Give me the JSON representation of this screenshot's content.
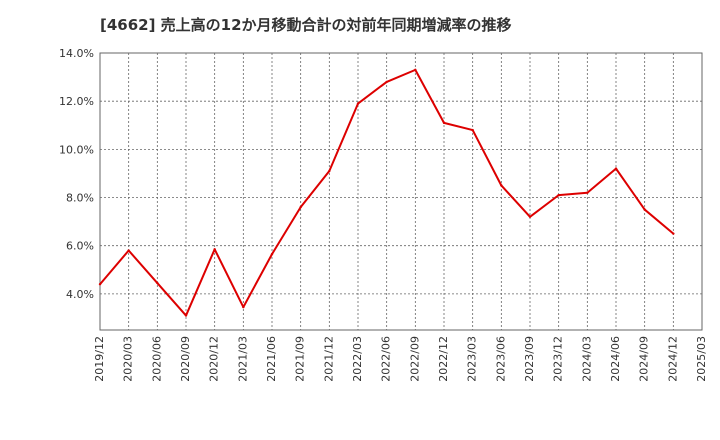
{
  "chart_data": {
    "type": "line",
    "title": "[4662]  売上高の12か月移動合計の対前年同期増減率の推移",
    "xlabel": "",
    "ylabel": "",
    "x": [
      "2019/12",
      "2020/03",
      "2020/06",
      "2020/09",
      "2020/12",
      "2021/03",
      "2021/06",
      "2021/09",
      "2021/12",
      "2022/03",
      "2022/06",
      "2022/09",
      "2022/12",
      "2023/03",
      "2023/06",
      "2023/09",
      "2023/12",
      "2024/03",
      "2024/06",
      "2024/09",
      "2024/12",
      "2025/03"
    ],
    "ylim": [
      2.5,
      14.0
    ],
    "yticks": [
      4.0,
      6.0,
      8.0,
      10.0,
      12.0,
      14.0
    ],
    "ytick_labels": [
      "4.0%",
      "6.0%",
      "8.0%",
      "10.0%",
      "12.0%",
      "14.0%"
    ],
    "grid": true,
    "color": "#dd0000",
    "series": [
      {
        "values": [
          4.4,
          5.8,
          4.45,
          3.1,
          5.85,
          3.45,
          5.65,
          7.6,
          9.1,
          11.9,
          12.8,
          13.3,
          11.1,
          10.8,
          8.5,
          7.2,
          8.1,
          8.2,
          9.2,
          7.5,
          6.5,
          null
        ]
      }
    ]
  }
}
